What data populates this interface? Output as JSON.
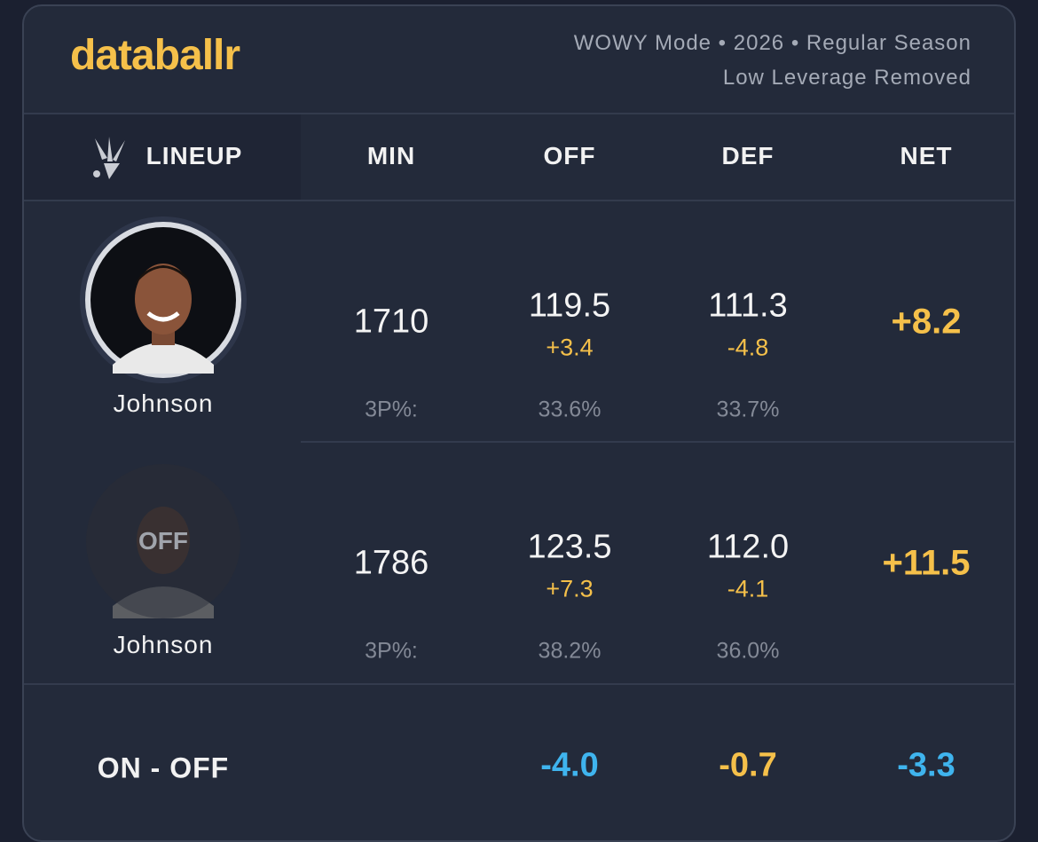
{
  "header": {
    "brand": "databallr",
    "subtitle_lines": [
      "WOWY Mode • 2026 • Regular Season",
      "Low Leverage Removed"
    ]
  },
  "table": {
    "columns": [
      "LINEUP",
      "MIN",
      "OFF",
      "DEF",
      "NET"
    ],
    "rows": [
      {
        "player": "Johnson",
        "min": "1710",
        "off": "119.5",
        "off_diff": "+3.4",
        "def": "111.3",
        "def_diff": "-4.8",
        "net": "+8.2",
        "shooting_label": "3P%:",
        "off_3p": "33.6%",
        "def_3p": "33.7%"
      },
      {
        "player": "Johnson",
        "status": "OFF",
        "min": "1786",
        "off": "123.5",
        "off_diff": "+7.3",
        "def": "112.0",
        "def_diff": "-4.1",
        "net": "+11.5",
        "shooting_label": "3P%:",
        "off_3p": "38.2%",
        "def_3p": "36.0%"
      }
    ],
    "footer": {
      "label": "ON - OFF",
      "off": "-4.0",
      "def": "-0.7",
      "net": "-3.3"
    }
  }
}
